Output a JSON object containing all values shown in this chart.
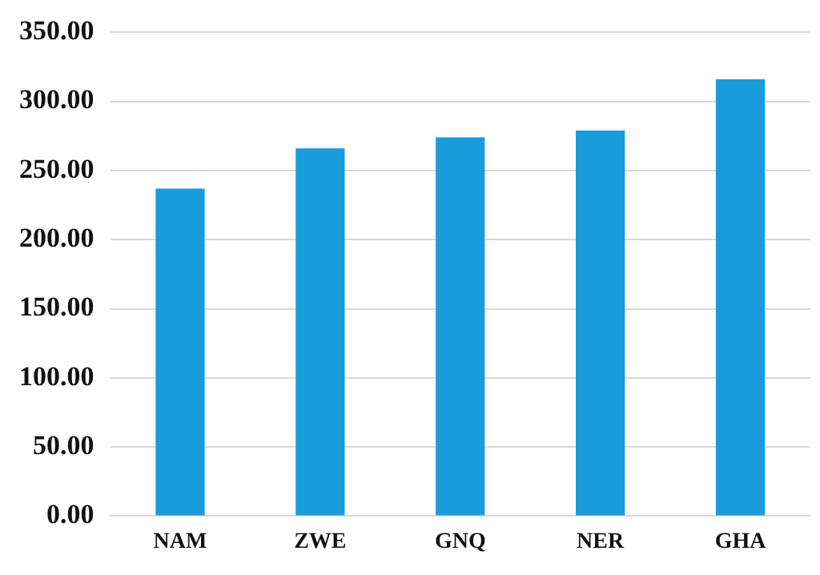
{
  "chart_data": {
    "type": "bar",
    "categories": [
      "NAM",
      "ZWE",
      "GNQ",
      "NER",
      "GHA"
    ],
    "values": [
      237,
      266,
      274,
      279,
      316
    ],
    "color": "#1a9bdc",
    "ylim": [
      0,
      350
    ],
    "yticks": [
      {
        "value": 0,
        "label": "0.00"
      },
      {
        "value": 50,
        "label": "50.00"
      },
      {
        "value": 100,
        "label": "100.00"
      },
      {
        "value": 150,
        "label": "150.00"
      },
      {
        "value": 200,
        "label": "200.00"
      },
      {
        "value": 250,
        "label": "250.00"
      },
      {
        "value": 300,
        "label": "300.00"
      },
      {
        "value": 350,
        "label": "350.00"
      }
    ],
    "grid": "y"
  }
}
